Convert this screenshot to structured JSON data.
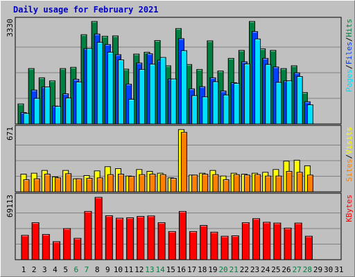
{
  "title": "Daily usage for February 2021",
  "colors": {
    "hits": "#008040",
    "files": "#0040ff",
    "pages": "#00e0ff",
    "visits": "#ffff00",
    "sites": "#ff8000",
    "kbytes": "#ff0000",
    "weekend_label": "#008040",
    "plot_bg": "#c0c0c0",
    "grid": "#808080"
  },
  "chart_data": [
    {
      "type": "bar",
      "name": "hits-files-pages",
      "categories": [
        "1",
        "2",
        "3",
        "4",
        "5",
        "6",
        "7",
        "8",
        "9",
        "10",
        "11",
        "12",
        "13",
        "14",
        "15",
        "16",
        "17",
        "18",
        "19",
        "20",
        "21",
        "22",
        "23",
        "24",
        "25",
        "26",
        "27",
        "28",
        "29",
        "30",
        "31"
      ],
      "max_label": "3330",
      "ylim": [
        0,
        3330
      ],
      "right_label_parts": [
        "Pages",
        "Files",
        "Hits"
      ],
      "series": [
        {
          "name": "Hits",
          "values": [
            650,
            1800,
            1500,
            1400,
            1800,
            1840,
            2900,
            3330,
            2850,
            2860,
            1780,
            2270,
            2330,
            2710,
            1890,
            3100,
            1930,
            1770,
            2700,
            1720,
            2130,
            2390,
            3330,
            2440,
            2390,
            1800,
            1890,
            1020,
            0,
            0,
            0
          ]
        },
        {
          "name": "Files",
          "values": [
            370,
            1100,
            1200,
            580,
            980,
            1450,
            2450,
            2920,
            2580,
            2250,
            1290,
            1980,
            2280,
            2070,
            1460,
            2770,
            1140,
            1210,
            1500,
            1070,
            1340,
            2020,
            3000,
            2130,
            1850,
            1400,
            1660,
            720,
            0,
            0,
            0
          ]
        },
        {
          "name": "Pages",
          "values": [
            340,
            830,
            1200,
            570,
            840,
            1360,
            2450,
            2650,
            2330,
            2080,
            800,
            1770,
            1940,
            2160,
            1460,
            2380,
            920,
            880,
            1370,
            940,
            1320,
            1950,
            2760,
            1930,
            1350,
            1400,
            1540,
            620,
            0,
            0,
            0
          ]
        }
      ]
    },
    {
      "type": "bar",
      "name": "visits-sites",
      "categories": [
        "1",
        "2",
        "3",
        "4",
        "5",
        "6",
        "7",
        "8",
        "9",
        "10",
        "11",
        "12",
        "13",
        "14",
        "15",
        "16",
        "17",
        "18",
        "19",
        "20",
        "21",
        "22",
        "23",
        "24",
        "25",
        "26",
        "27",
        "28",
        "29",
        "30",
        "31"
      ],
      "max_label": "671",
      "ylim": [
        0,
        671
      ],
      "right_label_parts": [
        "Sites",
        "Visits"
      ],
      "series": [
        {
          "name": "Visits",
          "values": [
            190,
            200,
            230,
            160,
            230,
            140,
            175,
            225,
            270,
            250,
            170,
            240,
            220,
            200,
            150,
            670,
            180,
            200,
            230,
            170,
            200,
            190,
            200,
            210,
            240,
            330,
            340,
            280,
            0,
            0,
            0
          ]
        },
        {
          "name": "Sites",
          "values": [
            130,
            140,
            190,
            150,
            195,
            140,
            145,
            150,
            185,
            190,
            165,
            185,
            190,
            185,
            145,
            640,
            180,
            190,
            185,
            130,
            185,
            180,
            185,
            170,
            170,
            220,
            210,
            180,
            0,
            0,
            0
          ]
        }
      ]
    },
    {
      "type": "bar",
      "name": "kbytes",
      "categories": [
        "1",
        "2",
        "3",
        "4",
        "5",
        "6",
        "7",
        "8",
        "9",
        "10",
        "11",
        "12",
        "13",
        "14",
        "15",
        "16",
        "17",
        "18",
        "19",
        "20",
        "21",
        "22",
        "23",
        "24",
        "25",
        "26",
        "27",
        "28",
        "29",
        "30",
        "31"
      ],
      "max_label": "69113",
      "ylim": [
        0,
        69113
      ],
      "right_label_parts": [
        "KBytes"
      ],
      "series": [
        {
          "name": "KBytes",
          "values": [
            27000,
            41000,
            28000,
            20000,
            34500,
            23700,
            53500,
            69113,
            48700,
            46000,
            46500,
            48000,
            48500,
            41000,
            31200,
            53500,
            31200,
            38000,
            30500,
            26000,
            26500,
            41000,
            45500,
            41500,
            40600,
            35000,
            40600,
            26000,
            0,
            0,
            0
          ]
        }
      ]
    }
  ],
  "weekend_days": [
    "6",
    "7",
    "13",
    "14",
    "20",
    "21",
    "27",
    "28"
  ]
}
